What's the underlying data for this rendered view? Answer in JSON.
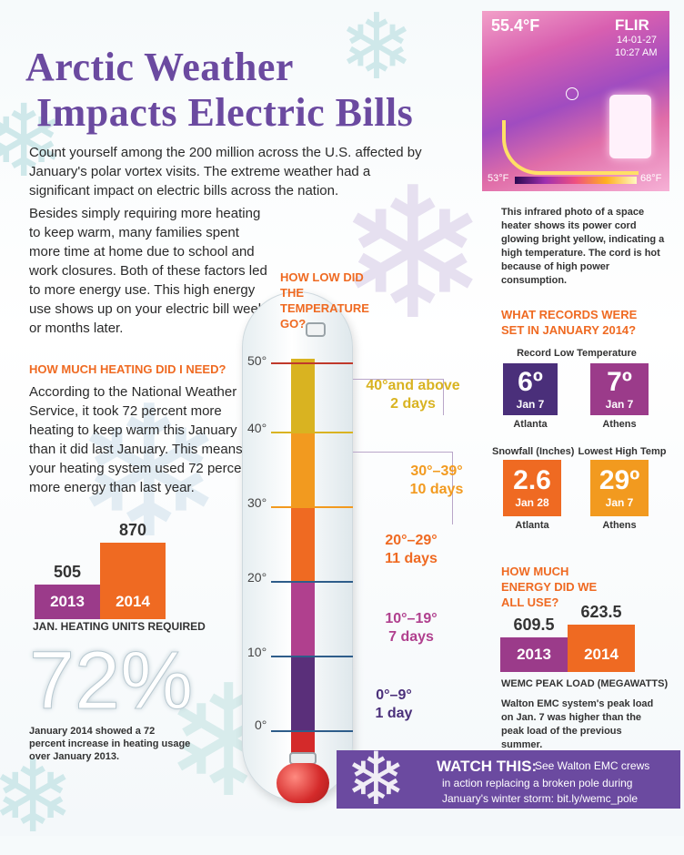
{
  "title": {
    "line1": "Arctic Weather",
    "line2": "Impacts Electric Bills"
  },
  "intro": "Count yourself among the 200 million across the U.S. affected by January's polar vortex visits. The extreme weather had a significant impact on electric bills across the nation.",
  "paragraph2": "Besides simply requiring more heating to keep warm, many families spent more time at home due to school and work closures. Both of these factors led to more energy use. This high energy use shows up on your electric bill weeks or months later.",
  "heating_section": {
    "heading": "HOW MUCH HEATING DID I NEED?",
    "text": "According to the National Weather Service, it took 72 percent more heating to keep warm this January than it did last January. This means your heating system used 72 percent more energy than last year.",
    "caption": "JAN. HEATING UNITS REQUIRED"
  },
  "big_percent": "72%",
  "percent_caption": "January 2014 showed a 72 percent increase in heating usage over January 2013.",
  "photo": {
    "temp": "55.4°F",
    "brand": "FLIR",
    "date": "14-01-27",
    "time": "10:27 AM",
    "scale_low": "53°F",
    "scale_high": "68°F",
    "caption": "This infrared photo of a space heater shows its power cord glowing bright yellow, indicating a high temperature. The cord is hot because of high power consumption."
  },
  "thermo": {
    "question": "HOW LOW DID THE TEMPERATURE GO?",
    "ticks": [
      "50°",
      "40°",
      "30°",
      "20°",
      "10°",
      "0°"
    ],
    "ranges": [
      {
        "range": "40°and above",
        "days": "2 days",
        "color": "#d9b321"
      },
      {
        "range": "30°–39°",
        "days": "10 days",
        "color": "#f29a1f"
      },
      {
        "range": "20°–29°",
        "days": "11 days",
        "color": "#ef6a22"
      },
      {
        "range": "10°–19°",
        "days": "7 days",
        "color": "#b0408e"
      },
      {
        "range": "0°–9°",
        "days": "1 day",
        "color": "#4a2f7a"
      }
    ]
  },
  "records": {
    "heading": "WHAT RECORDS WERE SET IN JANUARY 2014?",
    "low_temp_label": "Record Low Temperature",
    "snowfall_label": "Snowfall (Inches)",
    "lowest_high_label": "Lowest High Temp",
    "items": [
      {
        "value": "6º",
        "date": "Jan 7",
        "place": "Atlanta",
        "color": "#4a2f7a"
      },
      {
        "value": "7º",
        "date": "Jan 7",
        "place": "Athens",
        "color": "#9b3b8a"
      },
      {
        "value": "2.6",
        "date": "Jan 28",
        "place": "Atlanta",
        "color": "#ef6a22"
      },
      {
        "value": "29º",
        "date": "Jan 7",
        "place": "Athens",
        "color": "#f29a1f"
      }
    ]
  },
  "energy": {
    "heading": "HOW MUCH ENERGY DID WE ALL USE?",
    "caption": "WEMC PEAK LOAD (MEGAWATTS)",
    "text": "Walton EMC system's peak load on Jan. 7 was higher than the peak load of the previous summer."
  },
  "watch": {
    "label": "WATCH THIS:",
    "text1": "See Walton EMC crews",
    "text2": "in action replacing a broken pole during",
    "text3": "January's winter storm: bit.ly/wemc_pole"
  },
  "chart_data": [
    {
      "type": "bar",
      "title": "",
      "xlabel": "JAN. HEATING UNITS REQUIRED",
      "ylabel": "",
      "categories": [
        "2013",
        "2014"
      ],
      "values": [
        505,
        870
      ],
      "colors": [
        "#9b3b8a",
        "#ef6a22"
      ]
    },
    {
      "type": "bar",
      "title": "",
      "xlabel": "WEMC PEAK LOAD (MEGAWATTS)",
      "ylabel": "",
      "categories": [
        "2013",
        "2014"
      ],
      "values": [
        609.5,
        623.5
      ],
      "colors": [
        "#9b3b8a",
        "#ef6a22"
      ]
    }
  ]
}
